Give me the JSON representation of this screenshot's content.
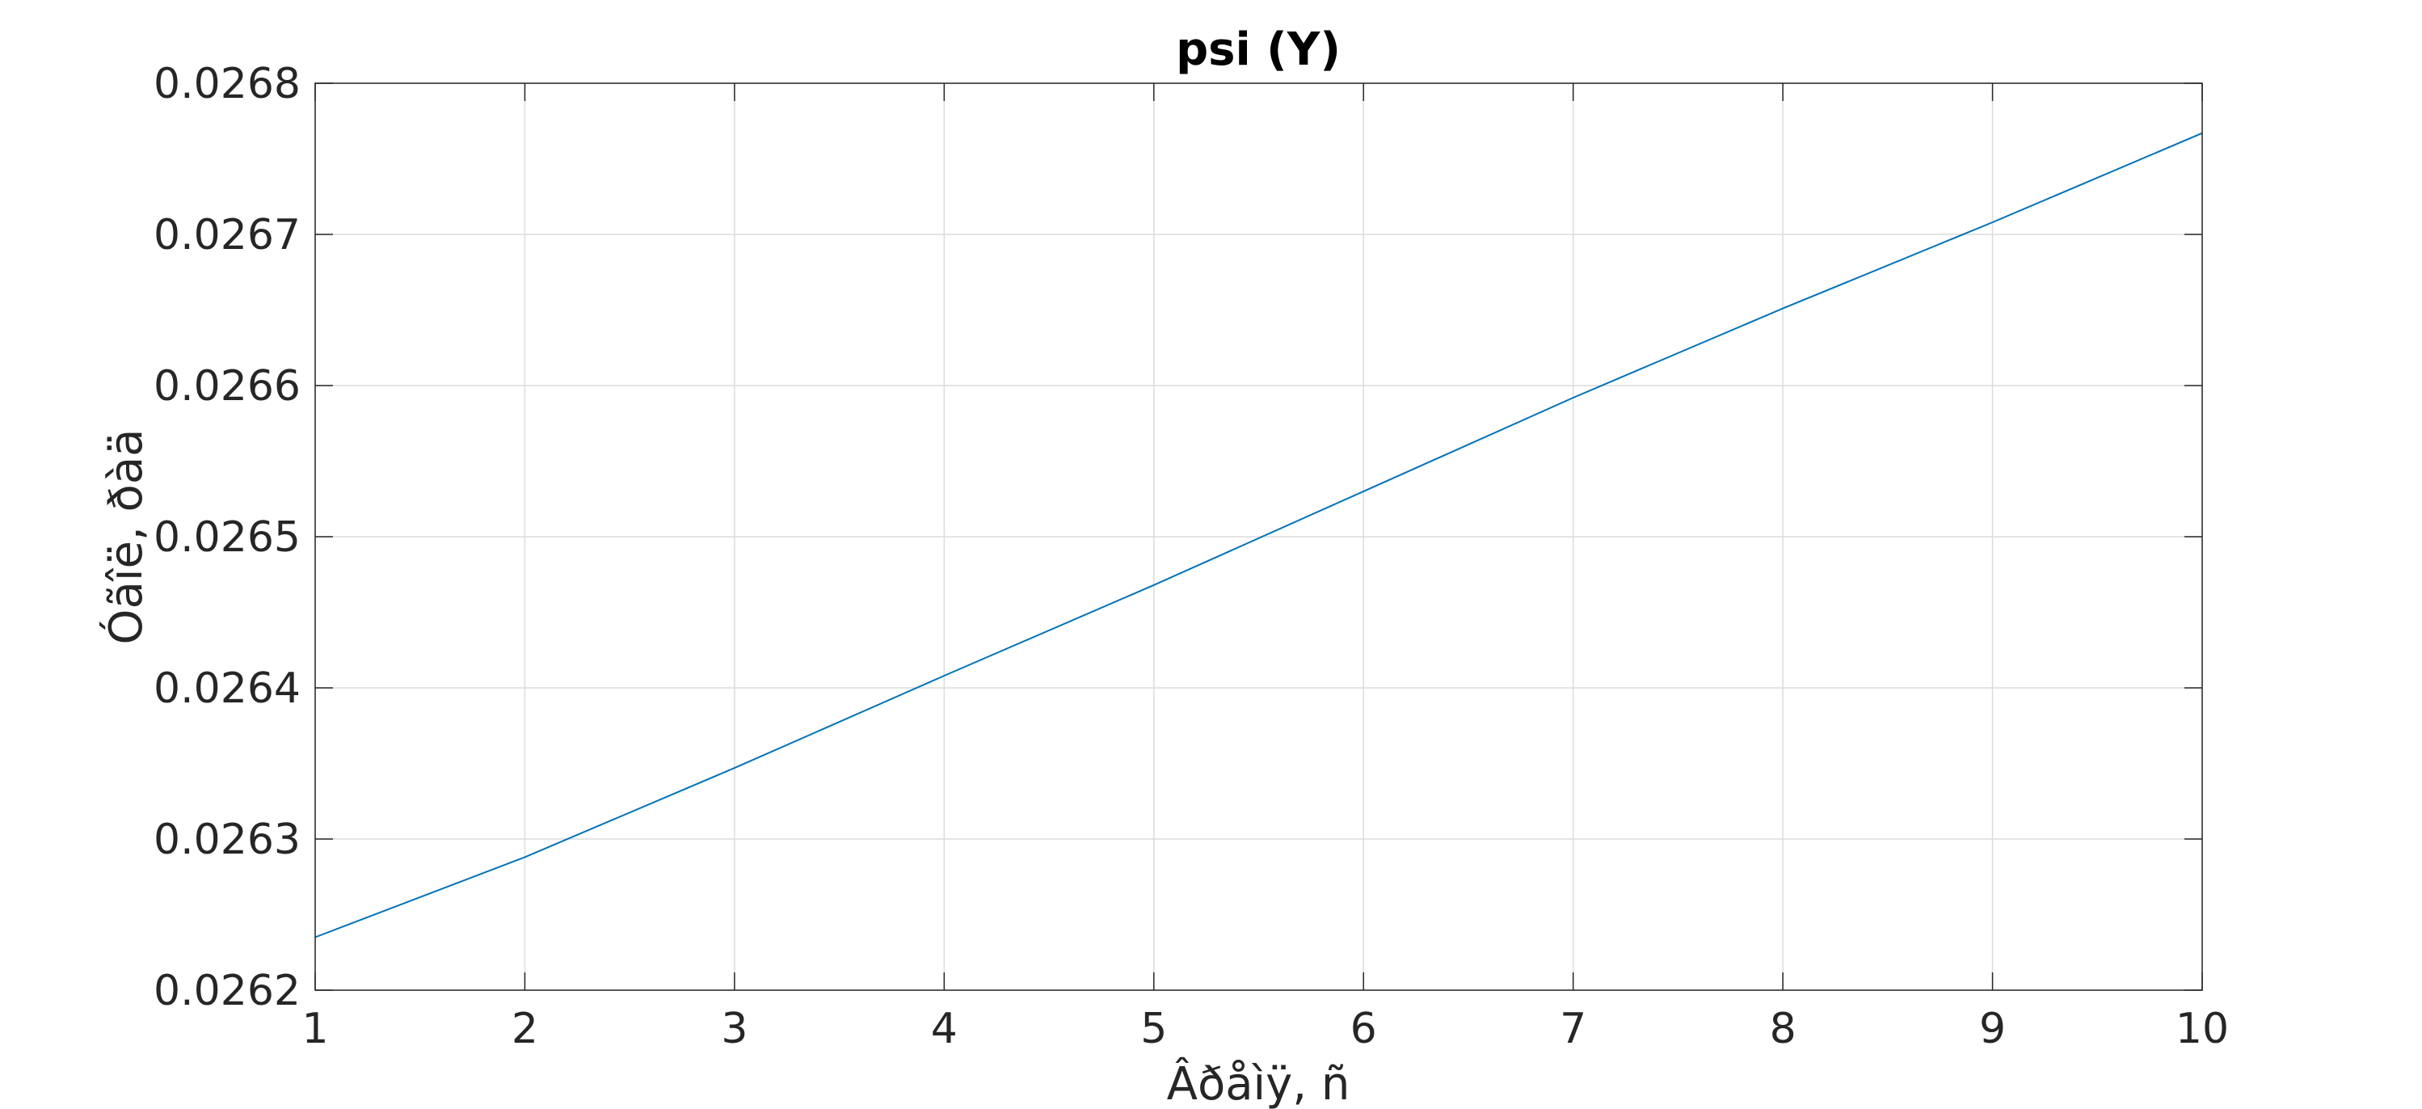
{
  "chart_data": {
    "type": "line",
    "title": "psi (Y)",
    "xlabel": "Âðåìÿ, ñ",
    "ylabel": "Óãîë, ðàä",
    "xlim": [
      1,
      10
    ],
    "ylim": [
      0.0262,
      0.0268
    ],
    "x_ticks": [
      "1",
      "2",
      "3",
      "4",
      "5",
      "6",
      "7",
      "8",
      "9",
      "10"
    ],
    "y_ticks": [
      "0.0262",
      "0.0263",
      "0.0264",
      "0.0265",
      "0.0266",
      "0.0267",
      "0.0268"
    ],
    "grid": true,
    "series": [
      {
        "color": "#0072BD",
        "x": [
          1,
          2,
          3,
          4,
          5,
          6,
          7,
          8,
          9,
          10
        ],
        "y": [
          0.026235,
          0.026288,
          0.026347,
          0.026408,
          0.026468,
          0.02653,
          0.026592,
          0.026651,
          0.026708,
          0.026767
        ]
      }
    ]
  }
}
